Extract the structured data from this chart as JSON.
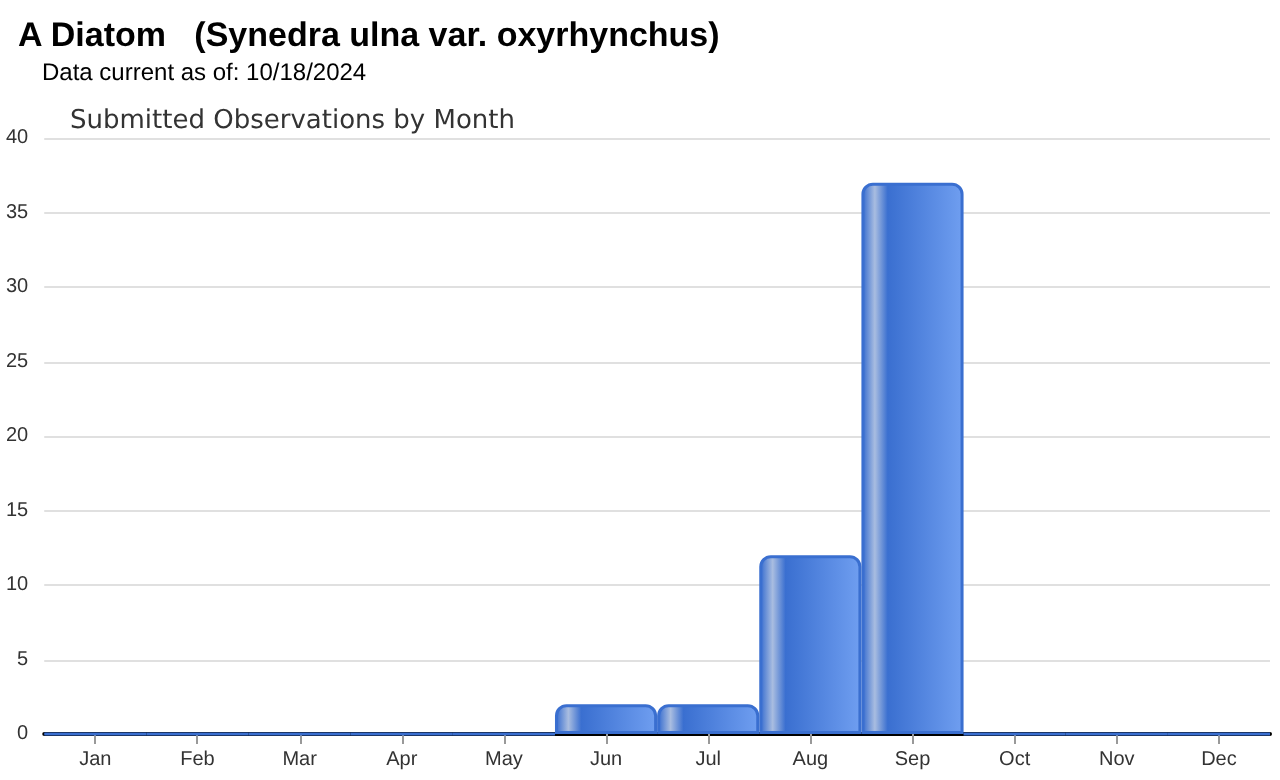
{
  "chart_data": {
    "type": "bar",
    "title": "A Diatom   (Synedra ulna var. oxyrhynchus)",
    "subtitle": "Data current as of: 10/18/2024",
    "annotations": [
      "Submitted Observations by Month"
    ],
    "categories": [
      "Jan",
      "Feb",
      "Mar",
      "Apr",
      "May",
      "Jun",
      "Jul",
      "Aug",
      "Sep",
      "Oct",
      "Nov",
      "Dec"
    ],
    "values": [
      0,
      0,
      0,
      0,
      0,
      2,
      2,
      12,
      37,
      0,
      0,
      0
    ],
    "color": "#3a6fd0",
    "ylim": [
      0,
      40
    ],
    "yticks": [
      0,
      5,
      10,
      15,
      20,
      25,
      30,
      35,
      40
    ],
    "grid": "y"
  }
}
